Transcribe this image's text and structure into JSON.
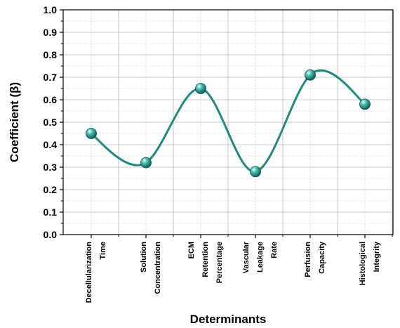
{
  "chart_data": {
    "type": "line",
    "categories": [
      [
        "Decellularization",
        "Time"
      ],
      [
        "Solution",
        "Concentration"
      ],
      [
        "ECM",
        "Retention",
        "Percentage"
      ],
      [
        "Vascular",
        "Leakage",
        "Rate"
      ],
      [
        "Perfusion",
        "Capacity"
      ],
      [
        "Histological",
        "Integrity"
      ]
    ],
    "values": [
      0.45,
      0.32,
      0.65,
      0.28,
      0.71,
      0.58
    ],
    "xlabel": "Determinants",
    "ylabel": "Coefficient (β)",
    "ylim": [
      0.0,
      1.0
    ],
    "yticks": [
      "0.0",
      "0.1",
      "0.2",
      "0.3",
      "0.4",
      "0.5",
      "0.6",
      "0.7",
      "0.8",
      "0.9",
      "1.0"
    ],
    "grid": true,
    "line_color": "#1e8a80",
    "marker_color": "#1a8a7e",
    "smooth": true
  }
}
